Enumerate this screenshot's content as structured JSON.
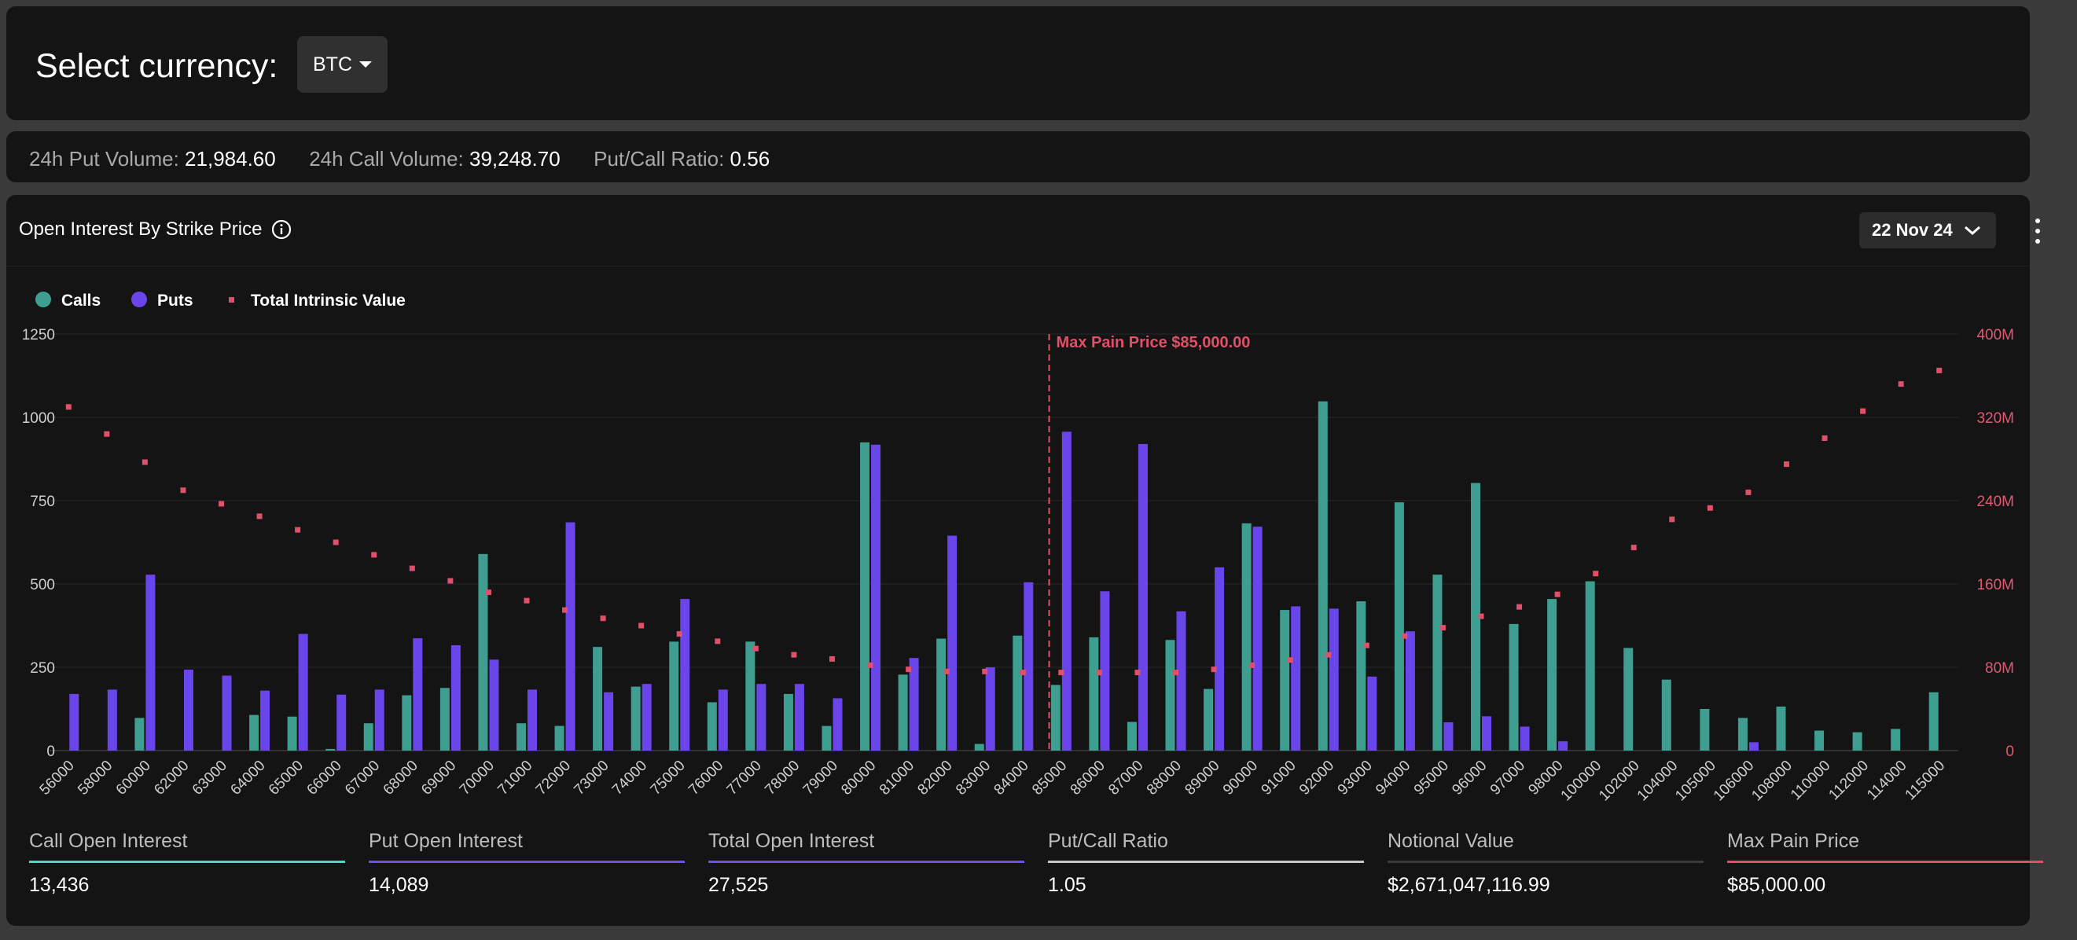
{
  "header": {
    "select_label": "Select currency:",
    "currency": "BTC"
  },
  "stats": {
    "put_volume_label": "24h Put Volume:",
    "put_volume": "21,984.60",
    "call_volume_label": "24h Call Volume:",
    "call_volume": "39,248.70",
    "ratio_label": "Put/Call Ratio:",
    "ratio": "0.56"
  },
  "card": {
    "title": "Open Interest By Strike Price",
    "date": "22 Nov 24"
  },
  "summary": [
    {
      "label": "Call Open Interest",
      "value": "13,436",
      "color": "#56d4c0"
    },
    {
      "label": "Put Open Interest",
      "value": "14,089",
      "color": "#6f4ef0"
    },
    {
      "label": "Total Open Interest",
      "value": "27,525",
      "color": "#6f4ef0"
    },
    {
      "label": "Put/Call Ratio",
      "value": "1.05",
      "color": "#c8c8c8"
    },
    {
      "label": "Notional Value",
      "value": "$2,671,047,116.99",
      "color": "#3a3a3a"
    },
    {
      "label": "Max Pain Price",
      "value": "$85,000.00",
      "color": "#e0506a"
    }
  ],
  "colors": {
    "calls": "#3e9e90",
    "puts": "#6a46ea",
    "intrinsic": "#e0506a"
  },
  "chart_data": {
    "type": "bar",
    "legend": [
      "Calls",
      "Puts",
      "Total Intrinsic Value"
    ],
    "legend_position": "top-left",
    "categories": [
      "56000",
      "58000",
      "60000",
      "62000",
      "63000",
      "64000",
      "65000",
      "66000",
      "67000",
      "68000",
      "69000",
      "70000",
      "71000",
      "72000",
      "73000",
      "74000",
      "75000",
      "76000",
      "77000",
      "78000",
      "79000",
      "80000",
      "81000",
      "82000",
      "83000",
      "84000",
      "85000",
      "86000",
      "87000",
      "88000",
      "89000",
      "90000",
      "91000",
      "92000",
      "93000",
      "94000",
      "95000",
      "96000",
      "97000",
      "98000",
      "100000",
      "102000",
      "104000",
      "105000",
      "106000",
      "108000",
      "110000",
      "112000",
      "114000",
      "115000"
    ],
    "series": [
      {
        "name": "Calls",
        "axis": "left",
        "values": [
          0,
          0,
          98,
          0,
          0,
          107,
          102,
          5,
          82,
          166,
          188,
          590,
          82,
          74,
          311,
          192,
          327,
          145,
          327,
          170,
          74,
          925,
          228,
          336,
          20,
          345,
          197,
          340,
          86,
          332,
          185,
          682,
          422,
          1048,
          448,
          745,
          528,
          803,
          380,
          455,
          508,
          308,
          213,
          125,
          98,
          132,
          60,
          55,
          65,
          175
        ]
      },
      {
        "name": "Puts",
        "axis": "left",
        "values": [
          170,
          183,
          528,
          243,
          225,
          180,
          350,
          168,
          183,
          337,
          316,
          273,
          183,
          685,
          175,
          200,
          455,
          183,
          200,
          200,
          157,
          918,
          278,
          645,
          250,
          505,
          957,
          478,
          920,
          418,
          550,
          672,
          433,
          426,
          222,
          358,
          85,
          103,
          72,
          28,
          0,
          0,
          0,
          0,
          25,
          0,
          0,
          0,
          0,
          0
        ]
      },
      {
        "name": "Total Intrinsic Value",
        "axis": "right",
        "values": [
          330,
          304,
          277,
          250,
          237,
          225,
          212,
          200,
          188,
          175,
          163,
          152,
          144,
          135,
          127,
          120,
          112,
          105,
          98,
          92,
          88,
          82,
          78,
          76,
          76,
          75,
          75,
          75,
          75,
          75,
          78,
          82,
          87,
          92,
          101,
          110,
          118,
          129,
          138,
          150,
          170,
          195,
          222,
          233,
          248,
          275,
          300,
          326,
          352,
          365
        ]
      }
    ],
    "max_pain_label": "Max Pain Price $85,000.00",
    "max_pain_strike": "85000",
    "ylim_left": [
      0,
      1250
    ],
    "yticks_left": [
      0,
      250,
      500,
      750,
      1000,
      1250
    ],
    "ylim_right": [
      0,
      400
    ],
    "yticks_right_labels": [
      "0",
      "80M",
      "160M",
      "240M",
      "320M",
      "400M"
    ],
    "grid": true
  }
}
